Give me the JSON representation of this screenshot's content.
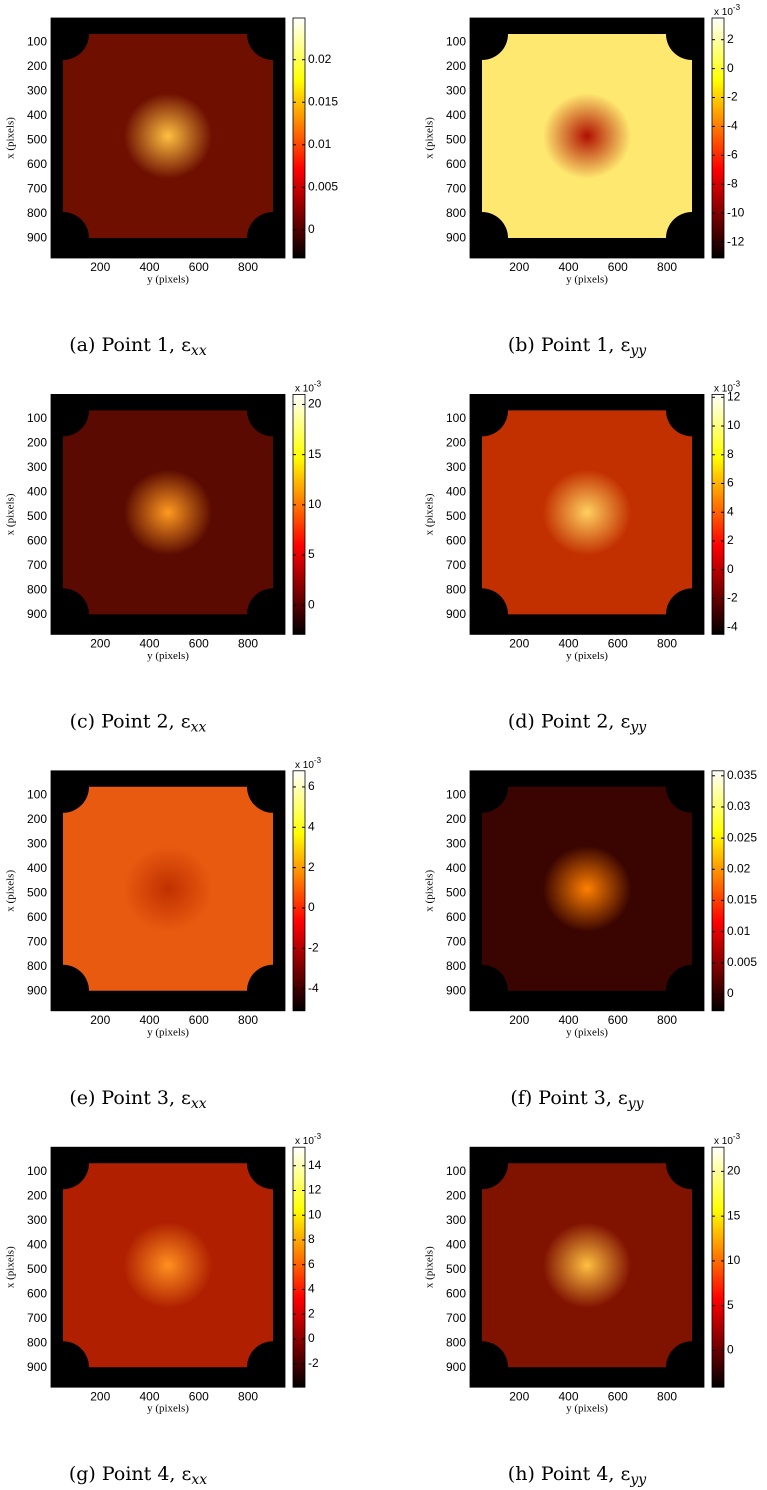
{
  "chart_data": [
    {
      "type": "heatmap",
      "caption": "(a) Point 1, ε",
      "caption_sub": "xx",
      "xlabel": "y (pixels)",
      "ylabel": "x (pixels)",
      "xlim": [
        0,
        950
      ],
      "ylim": [
        0,
        980
      ],
      "y_reversed": true,
      "xticks": [
        200,
        400,
        600,
        800
      ],
      "yticks": [
        100,
        200,
        300,
        400,
        500,
        600,
        700,
        800,
        900
      ],
      "colormap": "hot",
      "clim": [
        -0.0033,
        0.0249
      ],
      "cticks": [
        0,
        0.005,
        0.01,
        0.015,
        0.02
      ],
      "image_colors": [
        "#6e0f00",
        "#ffc040"
      ]
    },
    {
      "type": "heatmap",
      "caption": "(b) Point 1, ε",
      "caption_sub": "yy",
      "xlabel": "y (pixels)",
      "ylabel": "x (pixels)",
      "xlim": [
        0,
        950
      ],
      "ylim": [
        0,
        980
      ],
      "y_reversed": true,
      "xticks": [
        200,
        400,
        600,
        800
      ],
      "yticks": [
        100,
        200,
        300,
        400,
        500,
        600,
        700,
        800,
        900
      ],
      "colormap": "hot",
      "clim": [
        -13.1,
        3.5
      ],
      "cticks": [
        -12,
        -10,
        -8,
        -6,
        -4,
        -2,
        0,
        2
      ],
      "cbar_scale": "x 10",
      "cbar_exp": "-3",
      "image_colors": [
        "#ffe870",
        "#b01000"
      ]
    },
    {
      "type": "heatmap",
      "caption": "(c) Point 2, ε",
      "caption_sub": "xx",
      "xlabel": "y (pixels)",
      "ylabel": "x (pixels)",
      "xlim": [
        0,
        950
      ],
      "ylim": [
        0,
        980
      ],
      "y_reversed": true,
      "xticks": [
        200,
        400,
        600,
        800
      ],
      "yticks": [
        100,
        200,
        300,
        400,
        500,
        600,
        700,
        800,
        900
      ],
      "colormap": "hot",
      "clim": [
        -2.9,
        21
      ],
      "cticks": [
        0,
        5,
        10,
        15,
        20
      ],
      "cbar_scale": "x 10",
      "cbar_exp": "-3",
      "image_colors": [
        "#5a0a00",
        "#ff9a20"
      ]
    },
    {
      "type": "heatmap",
      "caption": "(d) Point 2, ε",
      "caption_sub": "yy",
      "xlabel": "y (pixels)",
      "ylabel": "x (pixels)",
      "xlim": [
        0,
        950
      ],
      "ylim": [
        0,
        980
      ],
      "y_reversed": true,
      "xticks": [
        200,
        400,
        600,
        800
      ],
      "yticks": [
        100,
        200,
        300,
        400,
        500,
        600,
        700,
        800,
        900
      ],
      "colormap": "hot",
      "clim": [
        -4.5,
        12.2
      ],
      "cticks": [
        -4,
        -2,
        0,
        2,
        4,
        6,
        8,
        10,
        12
      ],
      "cbar_scale": "x 10",
      "cbar_exp": "-3",
      "image_colors": [
        "#c23000",
        "#ffd060"
      ]
    },
    {
      "type": "heatmap",
      "caption": "(e) Point 3, ε",
      "caption_sub": "xx",
      "xlabel": "y (pixels)",
      "ylabel": "x (pixels)",
      "xlim": [
        0,
        950
      ],
      "ylim": [
        0,
        980
      ],
      "y_reversed": true,
      "xticks": [
        200,
        400,
        600,
        800
      ],
      "yticks": [
        100,
        200,
        300,
        400,
        500,
        600,
        700,
        800,
        900
      ],
      "colormap": "hot",
      "clim": [
        -5.1,
        6.8
      ],
      "cticks": [
        -4,
        -2,
        0,
        2,
        4,
        6
      ],
      "cbar_scale": "x 10",
      "cbar_exp": "-3",
      "image_colors": [
        "#e85a10",
        "#c03000"
      ]
    },
    {
      "type": "heatmap",
      "caption": "(f) Point 3, ε",
      "caption_sub": "yy",
      "xlabel": "y (pixels)",
      "ylabel": "x (pixels)",
      "xlim": [
        0,
        950
      ],
      "ylim": [
        0,
        980
      ],
      "y_reversed": true,
      "xticks": [
        200,
        400,
        600,
        800
      ],
      "yticks": [
        100,
        200,
        300,
        400,
        500,
        600,
        700,
        800,
        900
      ],
      "colormap": "hot",
      "clim": [
        -0.0027,
        0.0358
      ],
      "cticks": [
        0,
        0.005,
        0.01,
        0.015,
        0.02,
        0.025,
        0.03,
        0.035
      ],
      "image_colors": [
        "#3a0500",
        "#ff8000"
      ]
    },
    {
      "type": "heatmap",
      "caption": "(g) Point 4, ε",
      "caption_sub": "xx",
      "xlabel": "y (pixels)",
      "ylabel": "x (pixels)",
      "xlim": [
        0,
        950
      ],
      "ylim": [
        0,
        980
      ],
      "y_reversed": true,
      "xticks": [
        200,
        400,
        600,
        800
      ],
      "yticks": [
        100,
        200,
        300,
        400,
        500,
        600,
        700,
        800,
        900
      ],
      "colormap": "hot",
      "clim": [
        -3.9,
        15.5
      ],
      "cticks": [
        -2,
        0,
        2,
        4,
        6,
        8,
        10,
        12,
        14
      ],
      "cbar_scale": "x 10",
      "cbar_exp": "-3",
      "image_colors": [
        "#b02000",
        "#ff9020"
      ]
    },
    {
      "type": "heatmap",
      "caption": "(h) Point 4, ε",
      "caption_sub": "yy",
      "xlabel": "y (pixels)",
      "ylabel": "x (pixels)",
      "xlim": [
        0,
        950
      ],
      "ylim": [
        0,
        980
      ],
      "y_reversed": true,
      "xticks": [
        200,
        400,
        600,
        800
      ],
      "yticks": [
        100,
        200,
        300,
        400,
        500,
        600,
        700,
        800,
        900
      ],
      "colormap": "hot",
      "clim": [
        -4.1,
        22.7
      ],
      "cticks": [
        0,
        5,
        10,
        15,
        20
      ],
      "cbar_scale": "x 10",
      "cbar_exp": "-3",
      "image_colors": [
        "#801200",
        "#ffc040"
      ]
    }
  ]
}
